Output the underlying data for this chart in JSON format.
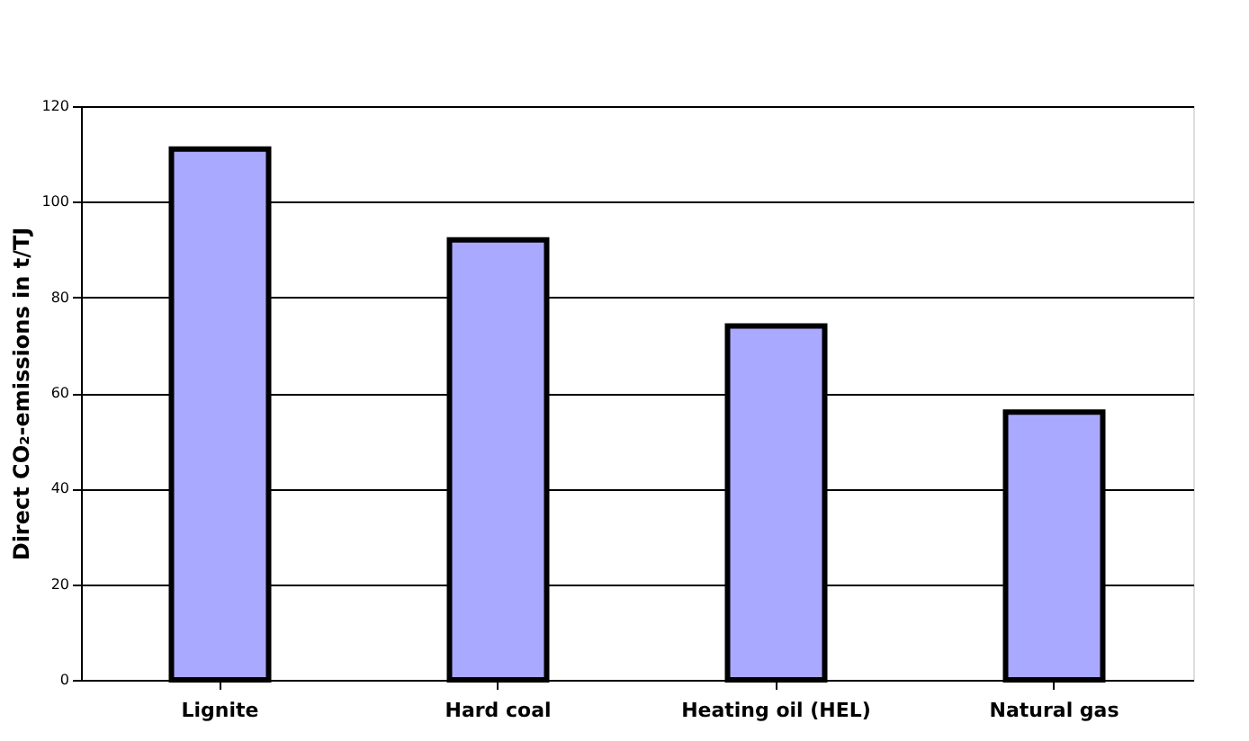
{
  "chart_data": {
    "type": "bar",
    "ylabel": "Direct CO₂-emissions in t/TJ",
    "categories": [
      "Lignite",
      "Hard coal",
      "Heating oil (HEL)",
      "Natural gas"
    ],
    "values": [
      111,
      92,
      74,
      56
    ],
    "color": "#a9a9ff",
    "ylim": [
      0,
      120
    ],
    "yticks": [
      0,
      20,
      40,
      60,
      80,
      100,
      120
    ],
    "grid": "y"
  }
}
